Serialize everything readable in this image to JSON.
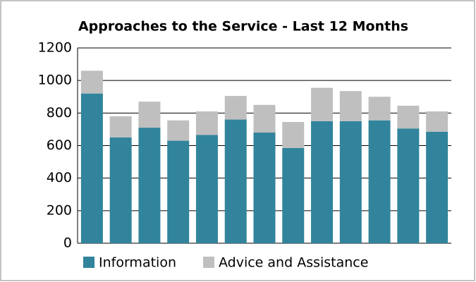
{
  "chart_data": {
    "type": "stacked_bar",
    "title": "Approaches to the Service - Last 12 Months",
    "categories": [
      null,
      null,
      null,
      null,
      null,
      null,
      null,
      null,
      null,
      null,
      null,
      null,
      null
    ],
    "series": [
      {
        "name": "Information",
        "color": "#31849b",
        "values": [
          920,
          650,
          710,
          630,
          665,
          760,
          680,
          585,
          750,
          750,
          755,
          705,
          685
        ]
      },
      {
        "name": "Advice and Assistance",
        "color": "#bfbfbf",
        "values": [
          140,
          130,
          160,
          125,
          145,
          145,
          170,
          160,
          205,
          185,
          145,
          140,
          125
        ]
      }
    ],
    "ylim": [
      0,
      1200
    ],
    "yticks": [
      0,
      200,
      400,
      600,
      800,
      1000,
      1200
    ],
    "grid": true,
    "legend": "bottom"
  }
}
